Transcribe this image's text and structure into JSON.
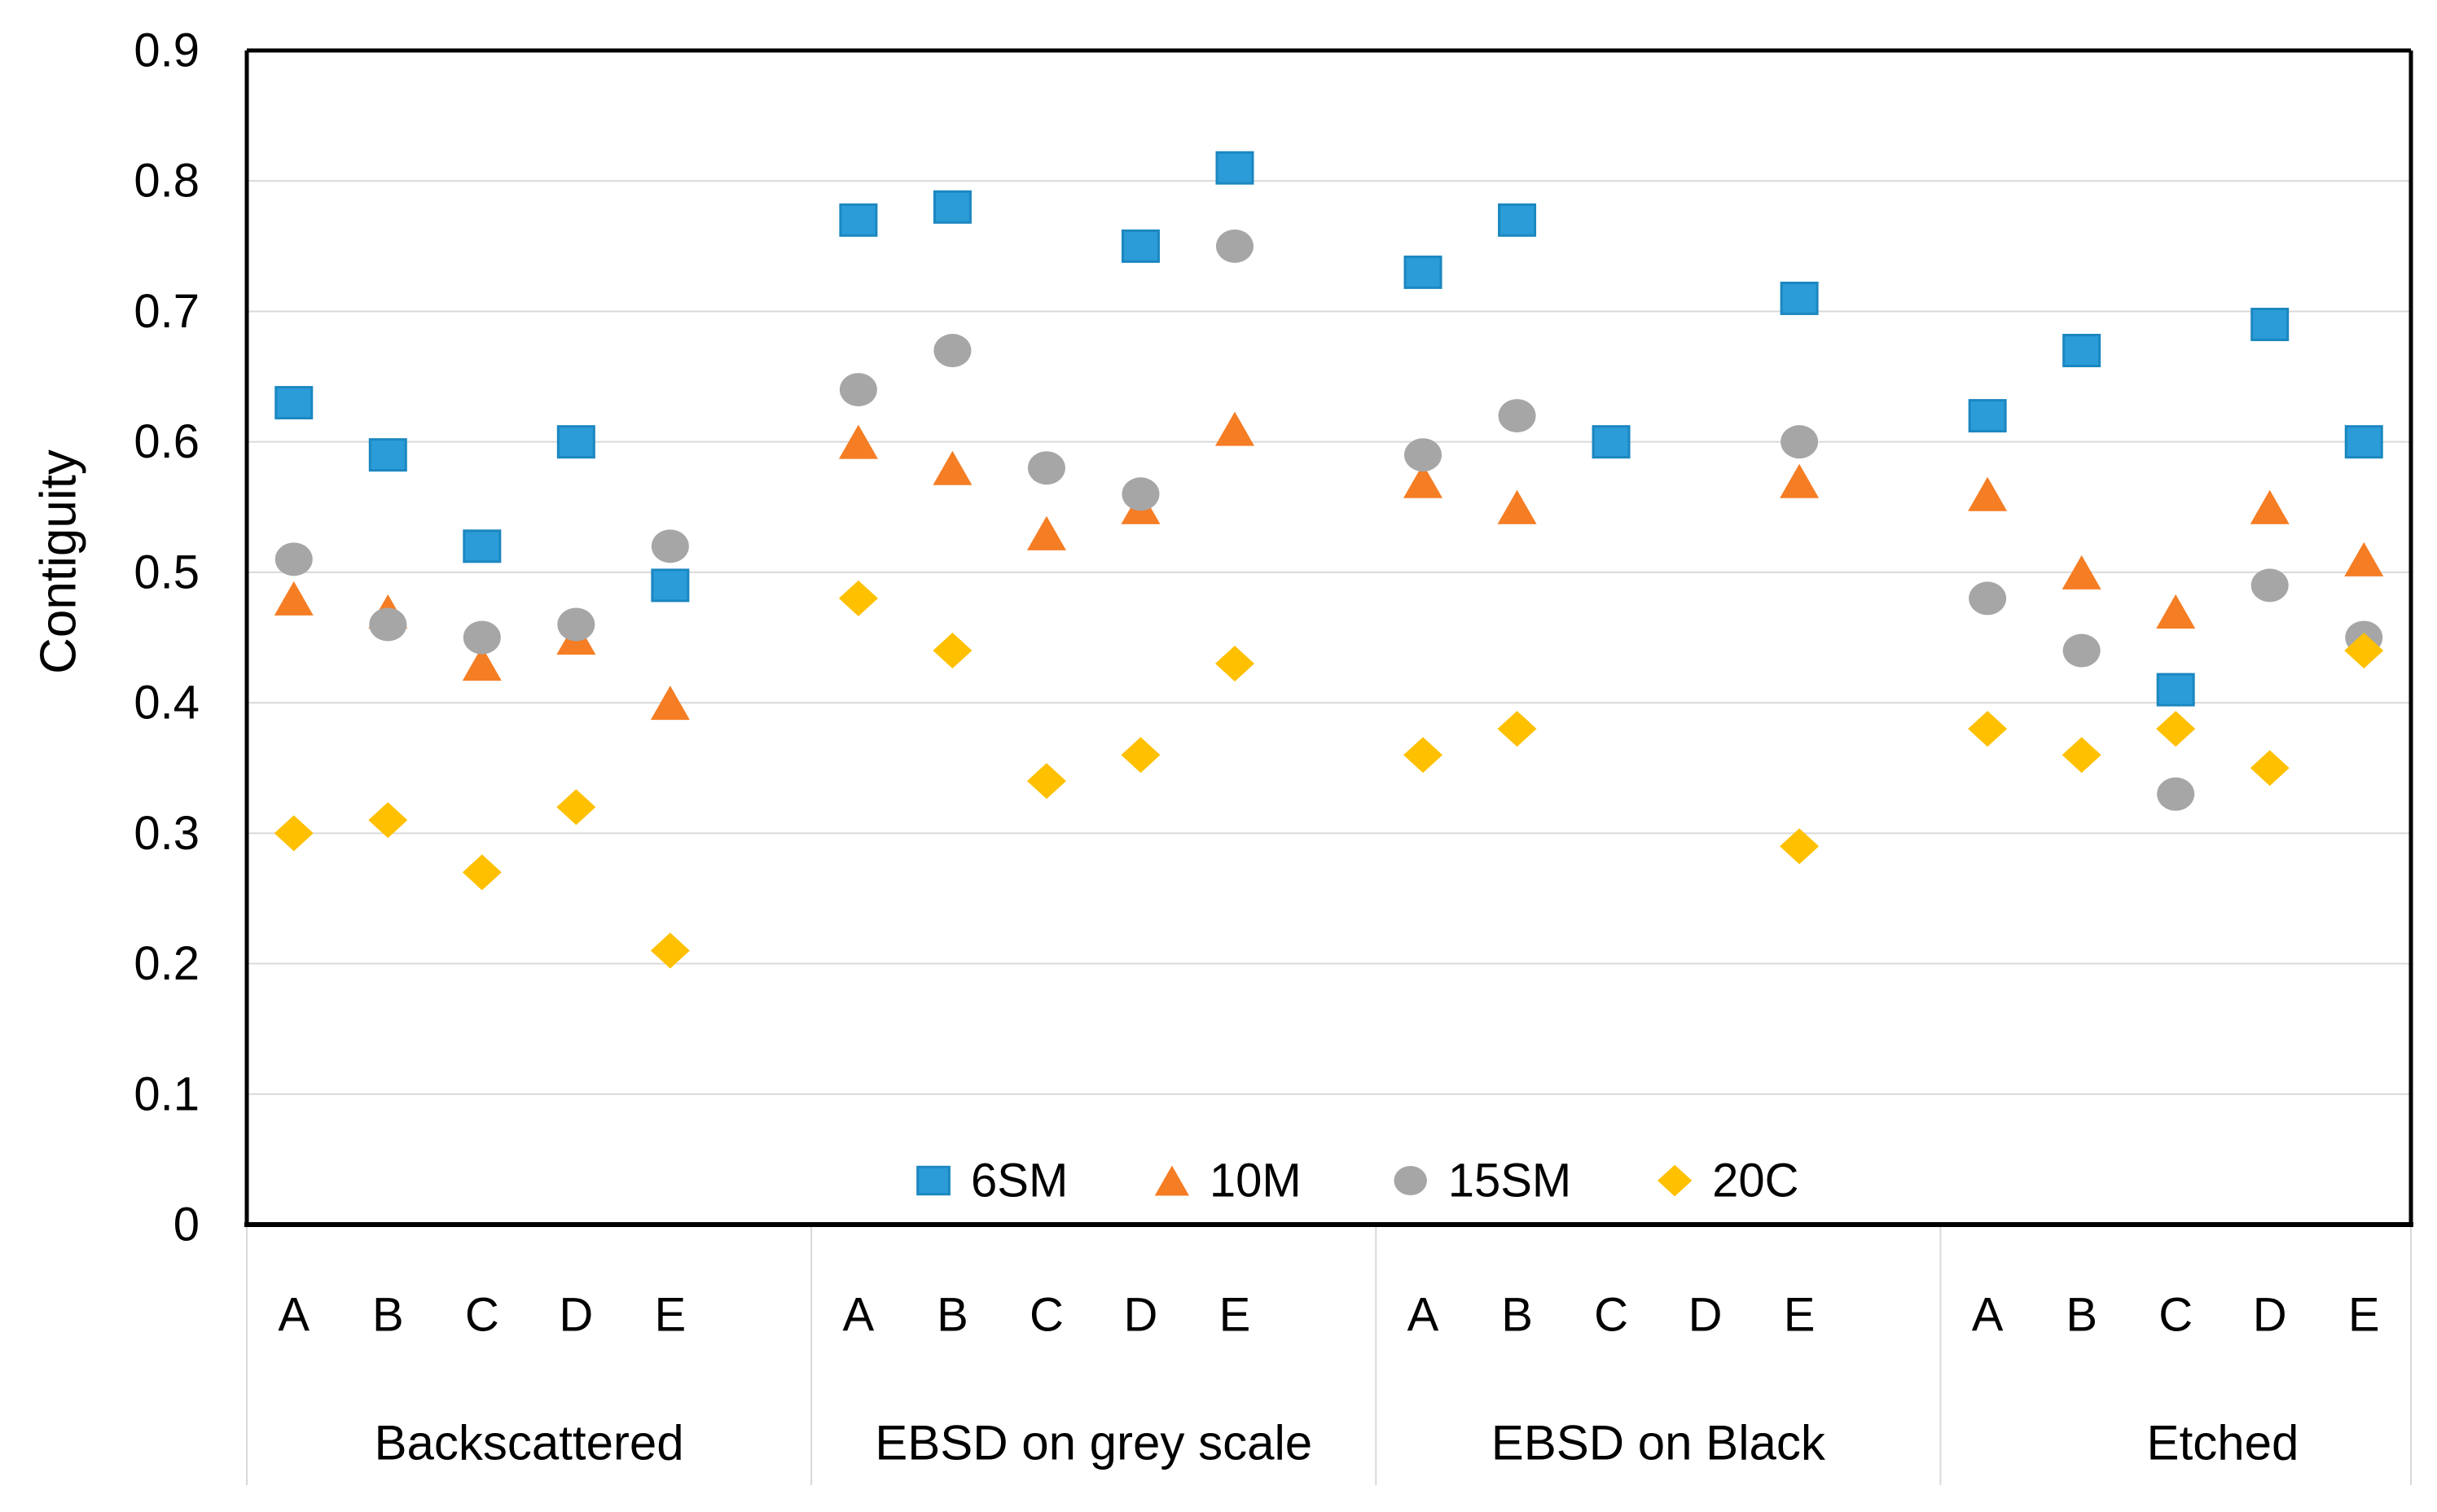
{
  "chart_data": {
    "type": "scatter",
    "title": "",
    "ylabel": "Contiguity",
    "ylim": [
      0,
      0.9
    ],
    "ytick_labels": [
      "0",
      "0.1",
      "0.2",
      "0.3",
      "0.4",
      "0.5",
      "0.6",
      "0.7",
      "0.8",
      "0.9"
    ],
    "grid": true,
    "legend_position": "bottom-inside",
    "gridline_color": "#D9D9D9",
    "axis_color": "#000000",
    "group_labels": [
      "Backscattered",
      "EBSD on grey scale",
      "EBSD on Black",
      "Etched"
    ],
    "categories": [
      "A",
      "B",
      "C",
      "D",
      "E"
    ],
    "series": [
      {
        "name": "6SM",
        "marker": "square",
        "color": "#2B9CD8",
        "edge": "#1B87C0",
        "values": [
          [
            0.63,
            0.59,
            0.52,
            0.6,
            0.49
          ],
          [
            0.77,
            0.78,
            null,
            0.75,
            0.81
          ],
          [
            0.73,
            0.77,
            0.6,
            null,
            0.71
          ],
          [
            0.62,
            0.67,
            0.41,
            0.69,
            0.6
          ]
        ]
      },
      {
        "name": "10M",
        "marker": "triangle",
        "color": "#F57D24",
        "edge": null,
        "values": [
          [
            0.48,
            0.47,
            0.43,
            0.45,
            0.4
          ],
          [
            0.6,
            0.58,
            0.53,
            0.55,
            0.61
          ],
          [
            0.57,
            0.55,
            null,
            null,
            0.57
          ],
          [
            0.56,
            0.5,
            0.47,
            0.55,
            0.51
          ]
        ]
      },
      {
        "name": "15SM",
        "marker": "circle",
        "color": "#A6A6A6",
        "edge": null,
        "values": [
          [
            0.51,
            0.46,
            0.45,
            0.46,
            0.52
          ],
          [
            0.64,
            0.67,
            0.58,
            0.56,
            0.75
          ],
          [
            0.59,
            0.62,
            null,
            null,
            0.6
          ],
          [
            0.48,
            0.44,
            0.33,
            0.49,
            0.45
          ]
        ]
      },
      {
        "name": "20C",
        "marker": "diamond",
        "color": "#FFC000",
        "edge": null,
        "values": [
          [
            0.3,
            0.31,
            0.27,
            0.32,
            0.21
          ],
          [
            0.48,
            0.44,
            0.34,
            0.36,
            0.43
          ],
          [
            0.36,
            0.38,
            null,
            null,
            0.29
          ],
          [
            0.38,
            0.36,
            0.38,
            0.35,
            0.44
          ]
        ]
      }
    ]
  }
}
